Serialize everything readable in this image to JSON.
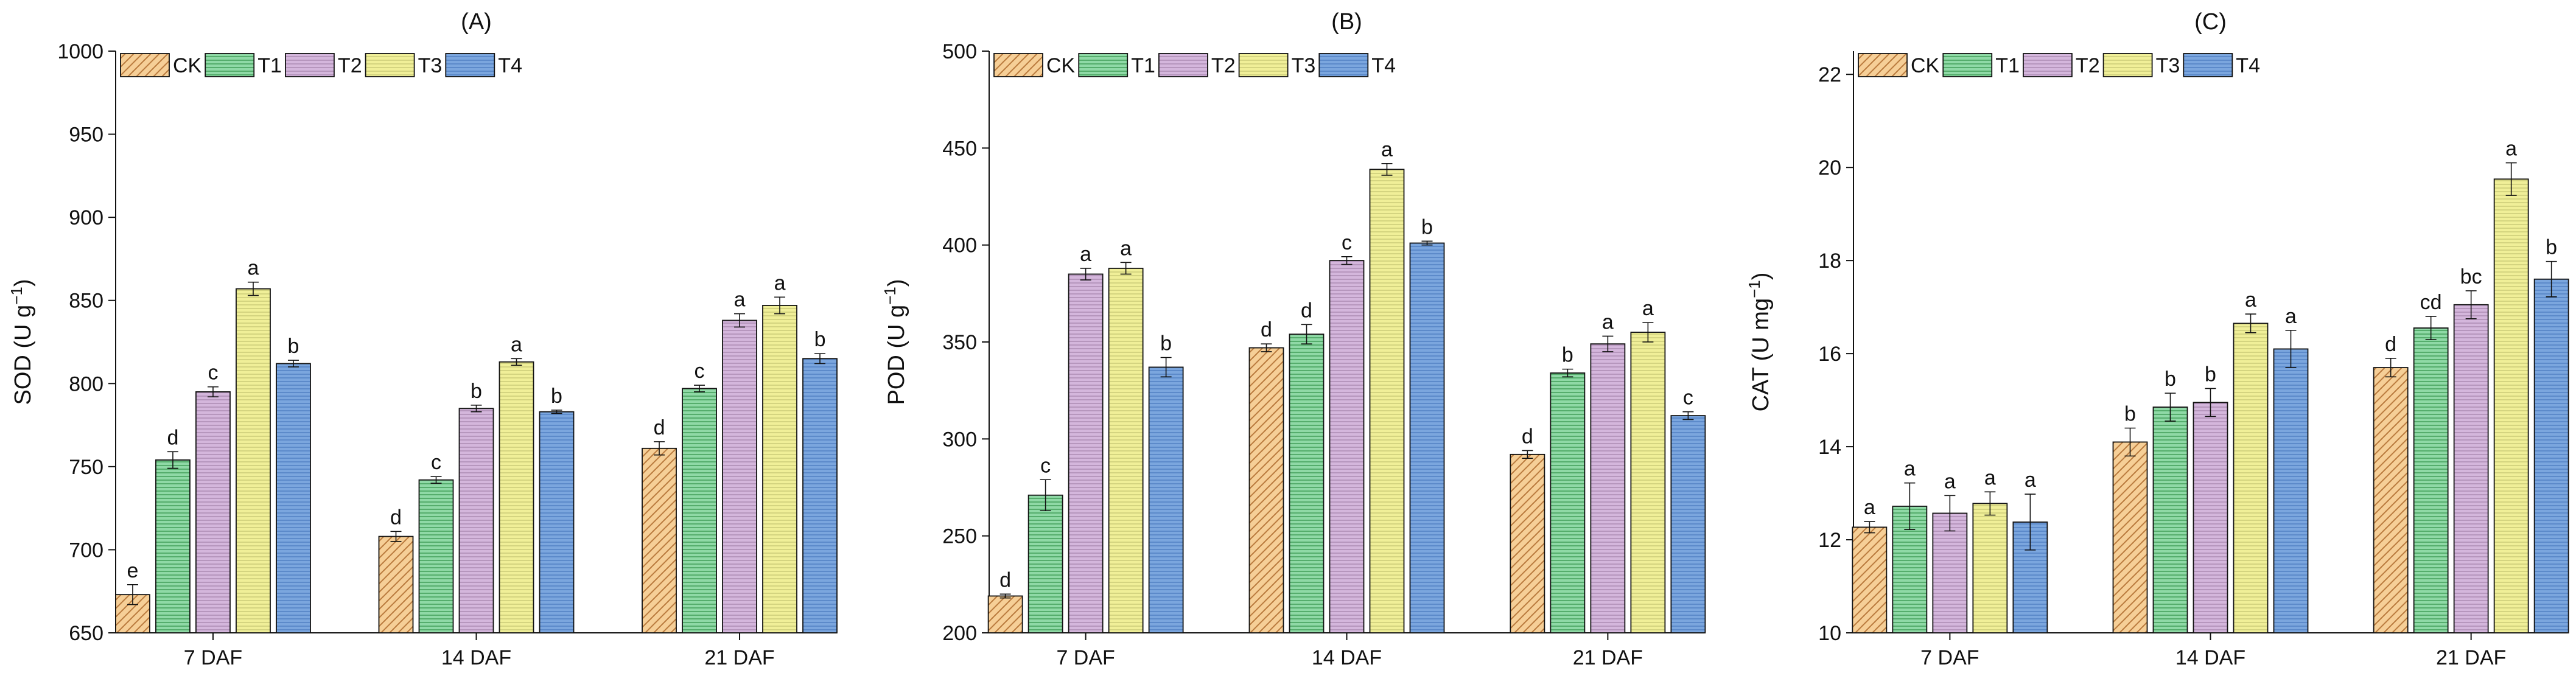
{
  "colors": {
    "CK": "#f6cf97",
    "T1": "#8fd9a6",
    "T2": "#d4b6dc",
    "T3": "#f0ef98",
    "T4": "#7ba6de",
    "CK_hatch": "#b97a3d",
    "T1_hatch": "#3c9a54",
    "T2_hatch": "#a989b0",
    "T3_hatch": "#c9c875",
    "T4_hatch": "#4f7fc1"
  },
  "chart_data": [
    {
      "type": "bar",
      "title": "(A)",
      "xlabel": "",
      "ylabel_main": "SOD (U g",
      "ylabel_sup": "−1",
      "ylabel_end": ")",
      "ylim": [
        650,
        1000
      ],
      "yticks": [
        650,
        700,
        750,
        800,
        850,
        900,
        950,
        1000
      ],
      "categories": [
        "7 DAF",
        "14 DAF",
        "21 DAF"
      ],
      "legend_position": "top-left",
      "series": [
        {
          "name": "CK",
          "values": [
            673,
            708,
            761
          ],
          "errors": [
            6,
            3,
            4
          ],
          "labels": [
            "e",
            "d",
            "d"
          ]
        },
        {
          "name": "T1",
          "values": [
            754,
            742,
            797
          ],
          "errors": [
            5,
            2,
            2
          ],
          "labels": [
            "d",
            "c",
            "c"
          ]
        },
        {
          "name": "T2",
          "values": [
            795,
            785,
            838
          ],
          "errors": [
            3,
            2,
            4
          ],
          "labels": [
            "c",
            "b",
            "a"
          ]
        },
        {
          "name": "T3",
          "values": [
            857,
            813,
            847
          ],
          "errors": [
            4,
            2,
            5
          ],
          "labels": [
            "a",
            "a",
            "a"
          ]
        },
        {
          "name": "T4",
          "values": [
            812,
            783,
            815
          ],
          "errors": [
            2,
            1,
            3
          ],
          "labels": [
            "b",
            "b",
            "b"
          ]
        }
      ]
    },
    {
      "type": "bar",
      "title": "(B)",
      "xlabel": "",
      "ylabel_main": "POD (U g",
      "ylabel_sup": "−1",
      "ylabel_end": ")",
      "ylim": [
        200,
        500
      ],
      "yticks": [
        200,
        250,
        300,
        350,
        400,
        450,
        500
      ],
      "categories": [
        "7 DAF",
        "14 DAF",
        "21 DAF"
      ],
      "legend_position": "top-left",
      "series": [
        {
          "name": "CK",
          "values": [
            219,
            347,
            292
          ],
          "errors": [
            1,
            2,
            2
          ],
          "labels": [
            "d",
            "d",
            "d"
          ]
        },
        {
          "name": "T1",
          "values": [
            271,
            354,
            334
          ],
          "errors": [
            8,
            5,
            2
          ],
          "labels": [
            "c",
            "d",
            "b"
          ]
        },
        {
          "name": "T2",
          "values": [
            385,
            392,
            349
          ],
          "errors": [
            3,
            2,
            4
          ],
          "labels": [
            "a",
            "c",
            "a"
          ]
        },
        {
          "name": "T3",
          "values": [
            388,
            439,
            355
          ],
          "errors": [
            3,
            3,
            5
          ],
          "labels": [
            "a",
            "a",
            "a"
          ]
        },
        {
          "name": "T4",
          "values": [
            337,
            401,
            312
          ],
          "errors": [
            5,
            1,
            2
          ],
          "labels": [
            "b",
            "b",
            "c"
          ]
        }
      ]
    },
    {
      "type": "bar",
      "title": "(C)",
      "xlabel": "",
      "ylabel_main": "CAT (U mg",
      "ylabel_sup": "−1",
      "ylabel_end": ")",
      "ylim": [
        10,
        22.5
      ],
      "yticks": [
        10,
        12,
        14,
        16,
        18,
        20,
        22
      ],
      "categories": [
        "7 DAF",
        "14 DAF",
        "21 DAF"
      ],
      "legend_position": "top-left",
      "series": [
        {
          "name": "CK",
          "values": [
            12.27,
            14.1,
            15.7
          ],
          "errors": [
            0.12,
            0.3,
            0.2
          ],
          "labels": [
            "a",
            "b",
            "d"
          ]
        },
        {
          "name": "T1",
          "values": [
            12.72,
            14.85,
            16.55
          ],
          "errors": [
            0.5,
            0.3,
            0.25
          ],
          "labels": [
            "a",
            "b",
            "cd"
          ]
        },
        {
          "name": "T2",
          "values": [
            12.57,
            14.95,
            17.05
          ],
          "errors": [
            0.38,
            0.3,
            0.3
          ],
          "labels": [
            "a",
            "b",
            "bc"
          ]
        },
        {
          "name": "T3",
          "values": [
            12.78,
            16.65,
            19.75
          ],
          "errors": [
            0.25,
            0.2,
            0.35
          ],
          "labels": [
            "a",
            "a",
            "a"
          ]
        },
        {
          "name": "T4",
          "values": [
            12.38,
            16.1,
            17.6
          ],
          "errors": [
            0.6,
            0.4,
            0.38
          ],
          "labels": [
            "a",
            "a",
            "b"
          ]
        }
      ]
    }
  ]
}
